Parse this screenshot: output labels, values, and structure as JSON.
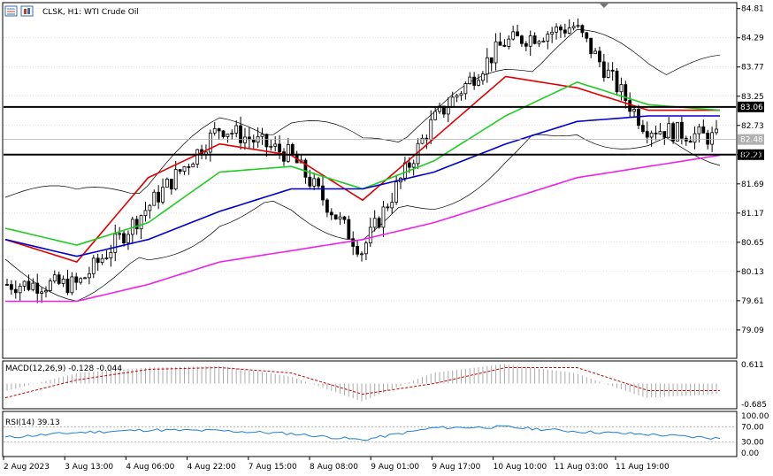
{
  "header": {
    "symbol_line": "CLSK, H1:  WTI Crude Oil",
    "icons": [
      "bar-chart-icon",
      "trade-icon"
    ]
  },
  "main_pane": {
    "price_ticks": [
      "84.81",
      "84.29",
      "83.77",
      "83.25",
      "82.73",
      "82.21",
      "81.69",
      "81.17",
      "80.65",
      "80.13",
      "79.61",
      "79.09"
    ],
    "price_range": [
      78.6,
      84.9
    ],
    "horizontal_levels": [
      {
        "price": 83.06,
        "label": "83.06",
        "color": "#000000"
      },
      {
        "price": 82.21,
        "label": "82.21",
        "color": "#000000"
      }
    ],
    "current_price": {
      "price": 82.48,
      "label": "82.48"
    }
  },
  "macd_pane": {
    "label": "MACD(12,26,9) -0.128 -0.044",
    "ticks": [
      "0.611",
      "-0.685"
    ]
  },
  "rsi_pane": {
    "label": "RSI(14) 39.13",
    "ticks": [
      "100.00",
      "70.00",
      "30.00",
      "0.00"
    ]
  },
  "time_axis": {
    "labels": [
      "2 Aug 2023",
      "3 Aug 13:00",
      "4 Aug 06:00",
      "4 Aug 22:00",
      "7 Aug 15:00",
      "8 Aug 08:00",
      "9 Aug 01:00",
      "9 Aug 17:00",
      "10 Aug 10:00",
      "11 Aug 03:00",
      "11 Aug 19:00"
    ]
  },
  "colors": {
    "ma_fast": "#e00000",
    "ma_mid": "#22cc22",
    "ma_slow": "#0000cc",
    "ma_long": "#ee22ee",
    "bands": "#000000",
    "macd_signal": "#cc0000",
    "rsi_line": "#1e7fd6",
    "grid": "#c8c8c8",
    "candle": "#000000"
  },
  "chart_data": {
    "type": "line",
    "title": "CLSK, H1:  WTI Crude Oil",
    "x": [
      "2 Aug 2023",
      "3 Aug 13:00",
      "4 Aug 06:00",
      "4 Aug 22:00",
      "7 Aug 15:00",
      "8 Aug 08:00",
      "9 Aug 01:00",
      "9 Aug 17:00",
      "10 Aug 10:00",
      "11 Aug 03:00",
      "11 Aug 19:00"
    ],
    "series": [
      {
        "values": [
          79.9,
          79.9,
          81.3,
          82.7,
          82.2,
          80.5,
          82.8,
          84.2,
          84.5,
          82.7,
          82.5
        ]
      },
      {
        "values": [
          80.7,
          80.3,
          81.8,
          82.4,
          82.2,
          81.4,
          82.5,
          83.6,
          83.4,
          83.0,
          83.0
        ]
      },
      {
        "values": [
          80.9,
          80.6,
          81.0,
          81.9,
          82.0,
          81.6,
          82.1,
          82.9,
          83.5,
          83.1,
          83.0
        ]
      },
      {
        "values": [
          80.7,
          80.4,
          80.7,
          81.2,
          81.6,
          81.6,
          81.9,
          82.4,
          82.8,
          82.9,
          82.9
        ]
      },
      {
        "values": [
          79.6,
          79.6,
          79.9,
          80.3,
          80.5,
          80.7,
          81.0,
          81.4,
          81.8,
          82.0,
          82.2
        ]
      }
    ],
    "ylim": [
      78.6,
      84.9
    ],
    "macd_hist": [
      -0.2,
      0.3,
      0.45,
      0.5,
      0.2,
      -0.5,
      0.3,
      0.55,
      0.3,
      -0.4,
      -0.3
    ],
    "macd_signal": [
      -0.4,
      0.1,
      0.4,
      0.45,
      0.3,
      -0.3,
      0.0,
      0.45,
      0.45,
      -0.2,
      -0.2
    ],
    "rsi": [
      42,
      55,
      62,
      60,
      52,
      35,
      68,
      70,
      58,
      50,
      39.13
    ]
  }
}
